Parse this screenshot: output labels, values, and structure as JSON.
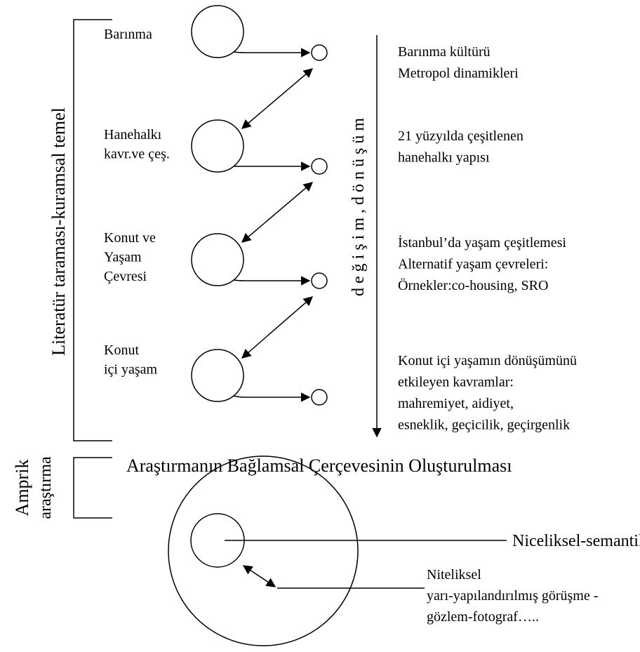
{
  "theory_label": "Literatür taraması-kuramsal temel",
  "flow_label": "d e ğ i ş i m , d ö n ü ş ü m",
  "stages": [
    {
      "label": [
        "Barınma"
      ],
      "notes": [
        "Barınma kültürü",
        "Metropol dinamikleri"
      ]
    },
    {
      "label": [
        "Hanehalkı",
        "kavr.ve çeş."
      ],
      "notes": [
        "21 yüzyılda çeşitlenen",
        "hanehalkı yapısı"
      ]
    },
    {
      "label": [
        "Konut ve",
        "Yaşam",
        "Çevresi"
      ],
      "notes": [
        "İstanbul’da yaşam çeşitlemesi",
        "Alternatif yaşam çevreleri:",
        "Örnekler:co-housing, SRO"
      ]
    },
    {
      "label": [
        "Konut",
        "içi yaşam"
      ],
      "notes": [
        "Konut  içi yaşamın dönüşümünü",
        "etkileyen kavramlar:",
        "mahremiyet, aidiyet,",
        "esneklik, geçicilik, geçirgenlik"
      ]
    }
  ],
  "context_title": "Araştırmanın Bağlamsal Çerçevesinin Oluşturulması",
  "empirical_label": [
    "Amprik",
    "araştırma"
  ],
  "quantitative": "Niceliksel-semantik farklar ölçeği",
  "qualitative": [
    "Niteliksel",
    "yarı-yapılandırılmış görüşme -",
    "gözlem-fotograf….."
  ]
}
